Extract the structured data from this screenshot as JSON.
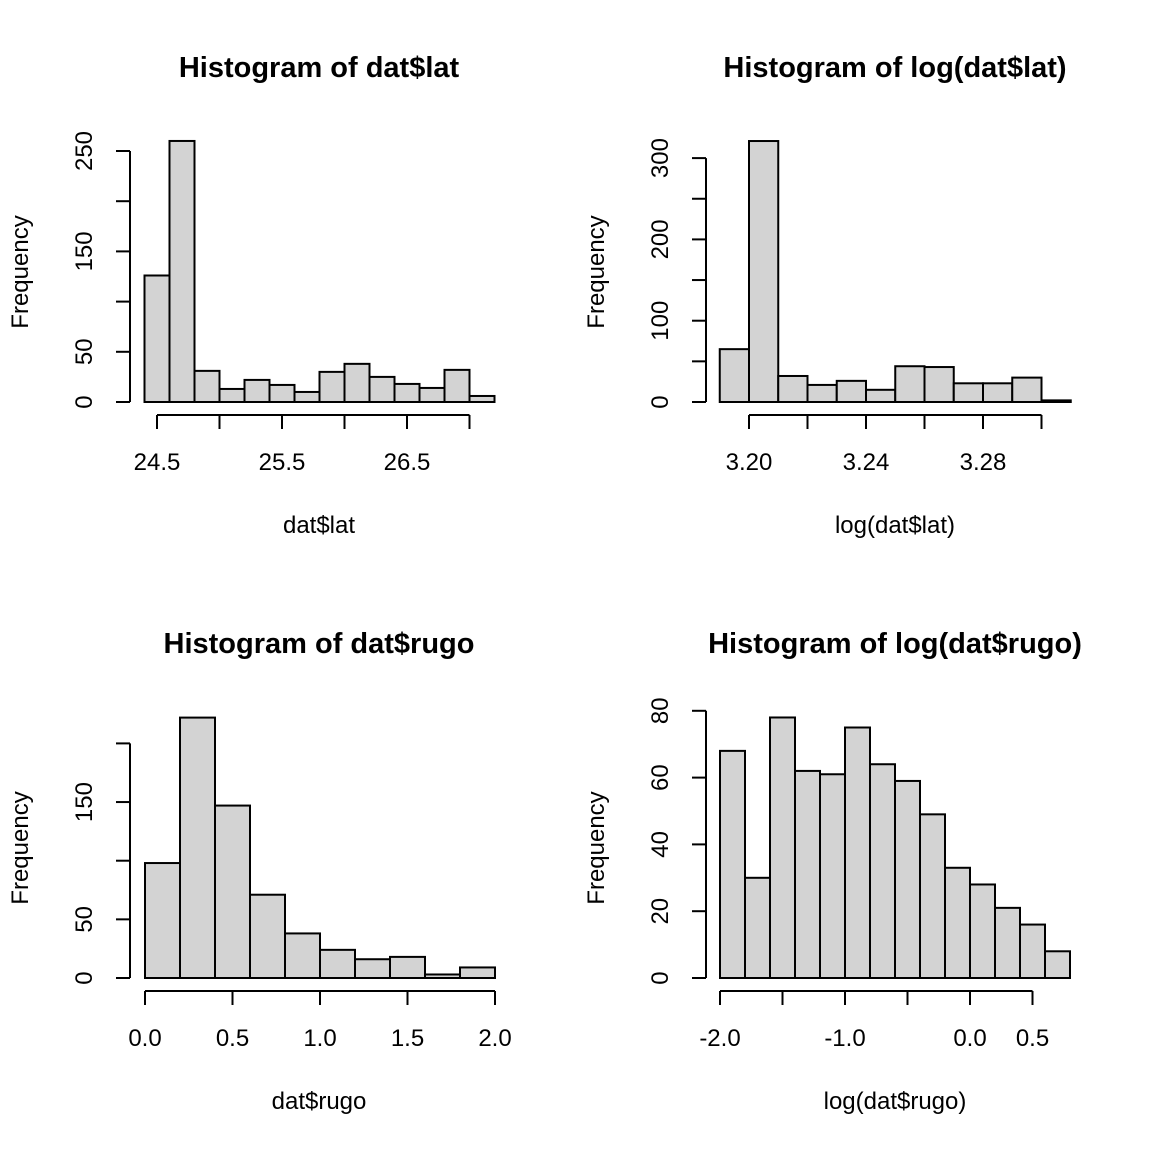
{
  "chart_data": [
    {
      "type": "bar",
      "title": "Histogram of dat$lat",
      "xlabel": "dat$lat",
      "ylabel": "Frequency",
      "bin_edges": [
        24.4,
        24.6,
        24.8,
        25.0,
        25.2,
        25.4,
        25.6,
        25.8,
        26.0,
        26.2,
        26.4,
        26.6,
        26.8,
        27.0,
        27.2
      ],
      "values": [
        126,
        260,
        31,
        13,
        22,
        17,
        10,
        30,
        38,
        25,
        18,
        14,
        32,
        6
      ],
      "x_ticks": [
        24.5,
        25.0,
        25.5,
        26.0,
        26.5,
        27.0
      ],
      "x_tick_labels": [
        "24.5",
        "25.5",
        "26.5"
      ],
      "y_ticks": [
        0,
        50,
        100,
        150,
        200,
        250
      ],
      "y_tick_labels": [
        "0",
        "50",
        "150",
        "250"
      ],
      "bar_color": "#d3d3d3",
      "grid": false
    },
    {
      "type": "bar",
      "title": "Histogram of log(dat$lat)",
      "xlabel": "log(dat$lat)",
      "ylabel": "Frequency",
      "bin_edges": [
        3.19,
        3.2,
        3.21,
        3.22,
        3.23,
        3.24,
        3.25,
        3.26,
        3.27,
        3.28,
        3.29,
        3.3,
        3.31
      ],
      "values": [
        65,
        321,
        32,
        21,
        26,
        15,
        44,
        43,
        23,
        23,
        30,
        2
      ],
      "x_ticks": [
        3.2,
        3.22,
        3.24,
        3.26,
        3.28,
        3.3
      ],
      "x_tick_labels": [
        "3.20",
        "3.24",
        "3.28"
      ],
      "y_ticks": [
        0,
        50,
        100,
        150,
        200,
        250,
        300
      ],
      "y_tick_labels": [
        "0",
        "100",
        "200",
        "300"
      ],
      "bar_color": "#d3d3d3",
      "grid": false
    },
    {
      "type": "bar",
      "title": "Histogram of dat$rugo",
      "xlabel": "dat$rugo",
      "ylabel": "Frequency",
      "bin_edges": [
        0.0,
        0.2,
        0.4,
        0.6,
        0.8,
        1.0,
        1.2,
        1.4,
        1.6,
        1.8,
        2.0
      ],
      "values": [
        98,
        222,
        147,
        71,
        38,
        24,
        16,
        18,
        3,
        9
      ],
      "x_ticks": [
        0.0,
        0.5,
        1.0,
        1.5,
        2.0
      ],
      "x_tick_labels": [
        "0.0",
        "0.5",
        "1.0",
        "1.5",
        "2.0"
      ],
      "y_ticks": [
        0,
        50,
        100,
        150,
        200
      ],
      "y_tick_labels": [
        "0",
        "50",
        "150"
      ],
      "bar_color": "#d3d3d3",
      "grid": false
    },
    {
      "type": "bar",
      "title": "Histogram of log(dat$rugo)",
      "xlabel": "log(dat$rugo)",
      "ylabel": "Frequency",
      "bin_edges": [
        -2.0,
        -1.8,
        -1.6,
        -1.4,
        -1.2,
        -1.0,
        -0.8,
        -0.6,
        -0.4,
        -0.2,
        0.0,
        0.2,
        0.4,
        0.6,
        0.8
      ],
      "values": [
        68,
        30,
        78,
        62,
        61,
        75,
        64,
        59,
        49,
        33,
        28,
        21,
        16,
        8
      ],
      "x_ticks": [
        -2.0,
        -1.5,
        -1.0,
        -0.5,
        0.0,
        0.5
      ],
      "x_tick_labels": [
        "-2.0",
        "-1.0",
        "0.0",
        "0.5"
      ],
      "y_ticks": [
        0,
        20,
        40,
        60,
        80
      ],
      "y_tick_labels": [
        "0",
        "20",
        "40",
        "60",
        "80"
      ],
      "bar_color": "#d3d3d3",
      "grid": false
    }
  ]
}
